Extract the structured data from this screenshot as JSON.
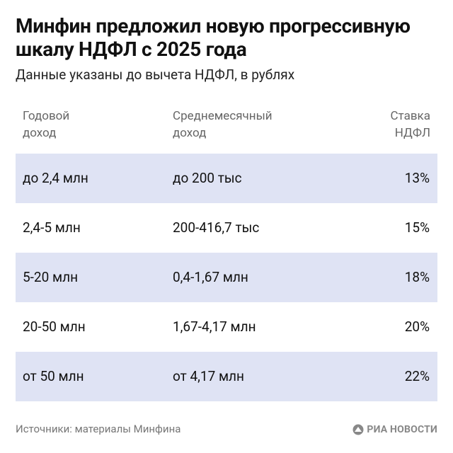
{
  "header": {
    "title": "Минфин предложил новую прогрессивную шкалу НДФЛ с 2025 года",
    "subtitle": "Данные указаны до вычета НДФЛ, в рублях"
  },
  "table": {
    "columns": [
      "Годовой доход",
      "Среднемесячный доход",
      "Ставка НДФЛ"
    ],
    "rows": [
      [
        "до 2,4 млн",
        "до 200 тыс",
        "13%"
      ],
      [
        "2,4-5 млн",
        "200-416,7 тыс",
        "15%"
      ],
      [
        "5-20 млн",
        "0,4-1,67 млн",
        "18%"
      ],
      [
        "20-50 млн",
        "1,67-4,17 млн",
        "20%"
      ],
      [
        "от 50 млн",
        "от 4,17 млн",
        "22%"
      ]
    ]
  },
  "footer": {
    "source": "Источники: материалы Минфина",
    "logo": "РИА НОВОСТИ"
  }
}
